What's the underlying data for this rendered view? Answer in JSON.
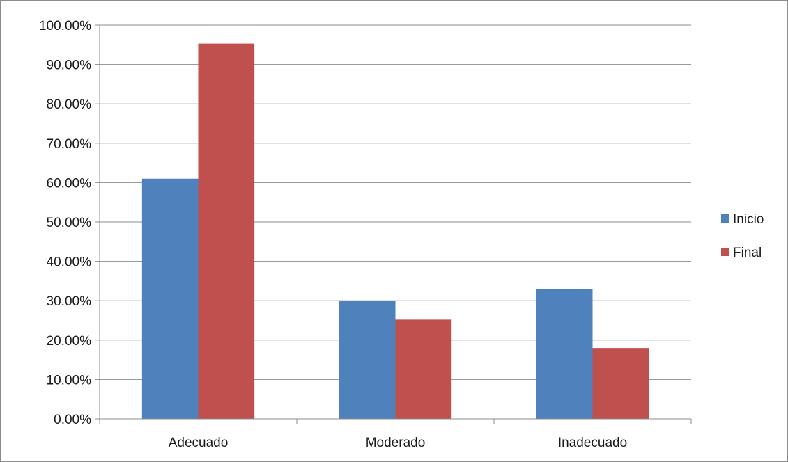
{
  "chart_data": {
    "type": "bar",
    "title": "",
    "xlabel": "",
    "ylabel": "",
    "categories": [
      "Adecuado",
      "Moderado",
      "Inadecuado"
    ],
    "series": [
      {
        "name": "Inicio",
        "color": "#4f81bd",
        "values": [
          0.61,
          0.3,
          0.33
        ]
      },
      {
        "name": "Final",
        "color": "#c0504d",
        "values": [
          0.953,
          0.252,
          0.18
        ]
      }
    ],
    "ylim": [
      0,
      1
    ],
    "yticks": [
      0,
      0.1,
      0.2,
      0.3,
      0.4,
      0.5,
      0.6,
      0.7,
      0.8,
      0.9,
      1.0
    ],
    "ytick_labels": [
      "0.00%",
      "10.00%",
      "20.00%",
      "30.00%",
      "40.00%",
      "50.00%",
      "60.00%",
      "70.00%",
      "80.00%",
      "90.00%",
      "100.00%"
    ],
    "grid": "horizontal",
    "legend": "right"
  }
}
